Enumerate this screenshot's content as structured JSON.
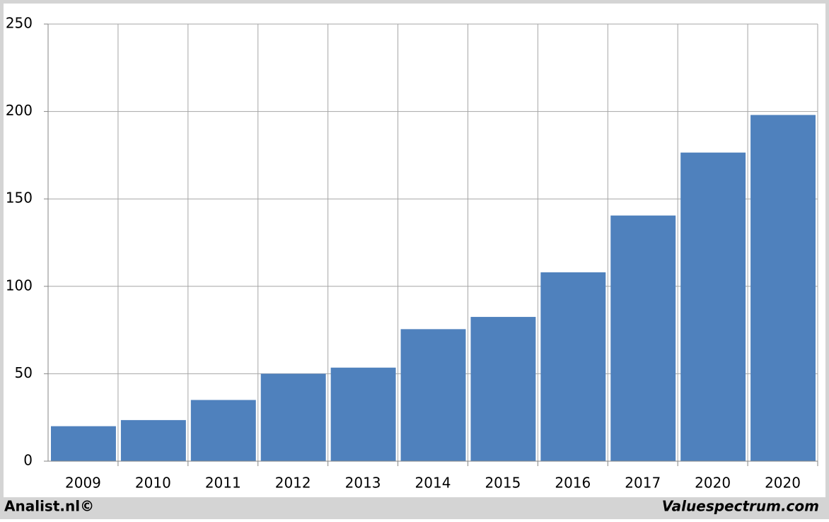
{
  "chart_data": {
    "type": "bar",
    "categories": [
      "2009",
      "2010",
      "2011",
      "2012",
      "2013",
      "2014",
      "2015",
      "2016",
      "2017",
      "2020",
      "2020"
    ],
    "values": [
      20,
      23.5,
      35,
      50,
      53.5,
      75.5,
      82.5,
      108,
      140.5,
      176.5,
      198
    ],
    "color": "#4f81bd",
    "ylim": [
      0,
      250
    ],
    "yticks": [
      0,
      50,
      100,
      150,
      200,
      250
    ],
    "grid": true,
    "footer_left": "Analist.nl©",
    "footer_right": "Valuespectrum.com"
  }
}
